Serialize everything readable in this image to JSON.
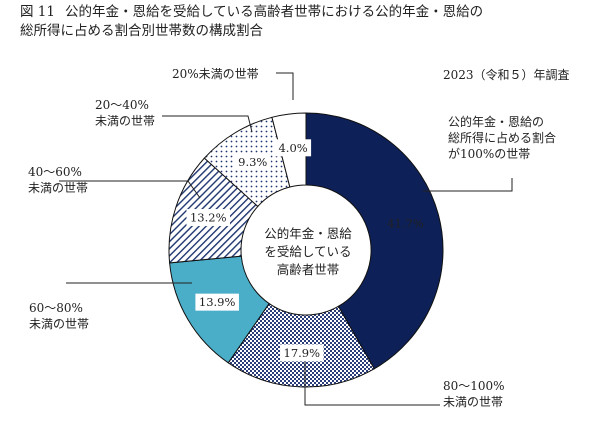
{
  "title": {
    "figure_no": "図 11",
    "line1": "公的年金・恩給を受給している高齢者世帯における公的年金・恩給の",
    "line2": "総所得に占める割合別世帯数の構成割合"
  },
  "survey_note": "2023（令和５）年調査",
  "center_label": [
    "公的年金・恩給",
    "を受給している",
    "高齢者世帯"
  ],
  "chart_data": {
    "type": "pie",
    "donut": true,
    "start_angle_deg": 0,
    "direction": "clockwise",
    "slices": [
      {
        "label_lines": [
          "公的年金・恩給の",
          "総所得に占める割合",
          "が100%の世帯"
        ],
        "value": 41.7,
        "value_label": "41.7%",
        "color": "#0d2057",
        "pattern": "solid"
      },
      {
        "label_lines": [
          "80～100%",
          "未満の世帯"
        ],
        "value": 17.9,
        "value_label": "17.9%",
        "color": "#2a3d7a",
        "pattern": "checker"
      },
      {
        "label_lines": [
          "60～80%",
          "未満の世帯"
        ],
        "value": 13.9,
        "value_label": "13.9%",
        "color": "#4baec8",
        "pattern": "solid"
      },
      {
        "label_lines": [
          "40～60%",
          "未満の世帯"
        ],
        "value": 13.2,
        "value_label": "13.2%",
        "color": "#1e3570",
        "pattern": "hatch"
      },
      {
        "label_lines": [
          "20～40%",
          "未満の世帯"
        ],
        "value": 9.3,
        "value_label": "9.3%",
        "color": "#1e3570",
        "pattern": "dots"
      },
      {
        "label_lines": [
          "20%未満の世帯"
        ],
        "value": 4.0,
        "value_label": "4.0%",
        "color": "#ffffff",
        "pattern": "none"
      }
    ]
  }
}
